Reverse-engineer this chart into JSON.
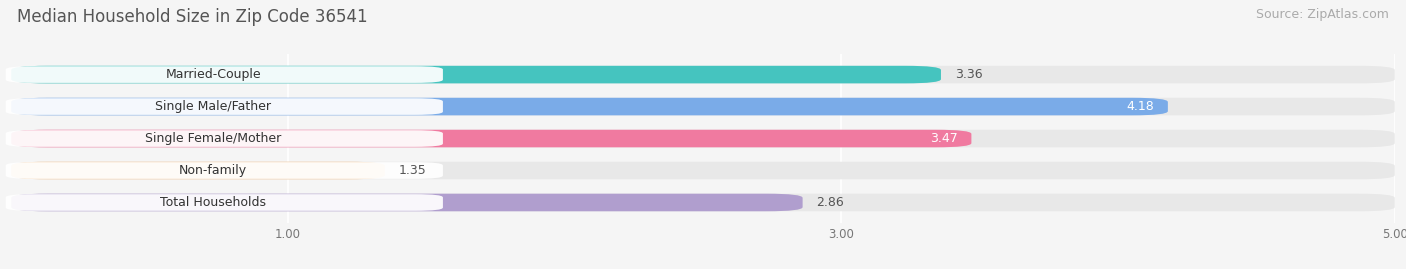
{
  "title": "Median Household Size in Zip Code 36541",
  "source": "Source: ZipAtlas.com",
  "categories": [
    "Married-Couple",
    "Single Male/Father",
    "Single Female/Mother",
    "Non-family",
    "Total Households"
  ],
  "values": [
    3.36,
    4.18,
    3.47,
    1.35,
    2.86
  ],
  "bar_colors": [
    "#45c4bf",
    "#7aabe8",
    "#f07aa0",
    "#f5c99a",
    "#b09ece"
  ],
  "value_text_colors": [
    "#444444",
    "#ffffff",
    "#ffffff",
    "#444444",
    "#444444"
  ],
  "xlim": [
    0,
    5.0
  ],
  "xticks": [
    1.0,
    3.0,
    5.0
  ],
  "xtick_labels": [
    "1.00",
    "3.00",
    "5.00"
  ],
  "background_color": "#f5f5f5",
  "bar_bg_color": "#e8e8e8",
  "title_fontsize": 12,
  "source_fontsize": 9,
  "bar_height": 0.55,
  "bar_gap": 0.45,
  "value_fontsize": 9,
  "label_fontsize": 9
}
